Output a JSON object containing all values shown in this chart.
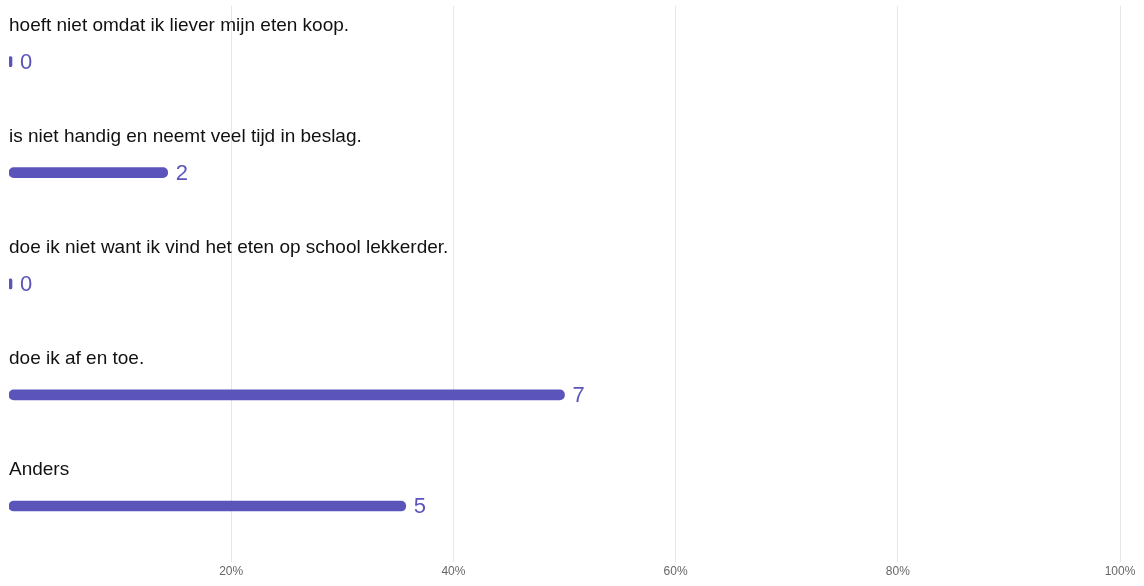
{
  "chart_data": {
    "type": "bar",
    "orientation": "horizontal",
    "categories": [
      "hoeft niet omdat ik liever mijn eten koop.",
      "is niet handig en neemt veel tijd in beslag.",
      "doe ik niet want ik vind het eten op school lekkerder.",
      "doe ik af en toe.",
      "Anders"
    ],
    "values": [
      0,
      2,
      0,
      7,
      5
    ],
    "data_labels": true,
    "color": "#5b55bb",
    "xlim": [
      0,
      14
    ],
    "x2lim": [
      0,
      100
    ],
    "x2ticks": [
      {
        "value": 20,
        "label": "20%"
      },
      {
        "value": 40,
        "label": "40%"
      },
      {
        "value": 60,
        "label": "60%"
      },
      {
        "value": 80,
        "label": "80%"
      },
      {
        "value": 100,
        "label": "100%"
      }
    ],
    "grid": "x"
  }
}
